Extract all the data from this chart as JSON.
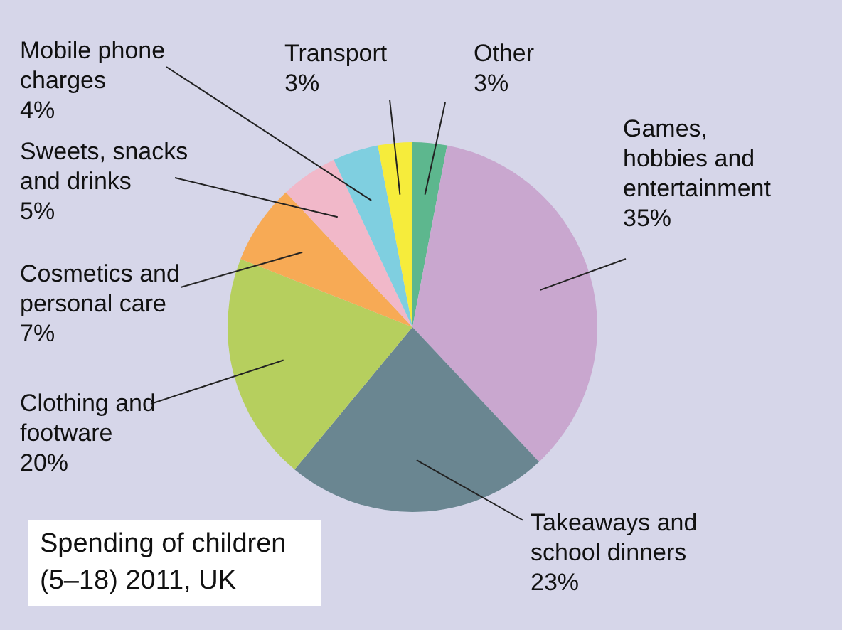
{
  "chart_data": {
    "type": "pie",
    "title": "Spending of children (5–18) 2011, UK",
    "categories": [
      "Other",
      "Games, hobbies and entertainment",
      "Takeaways and school dinners",
      "Clothing and footware",
      "Cosmetics and personal care",
      "Sweets, snacks and drinks",
      "Mobile phone charges",
      "Transport"
    ],
    "values": [
      3,
      35,
      23,
      20,
      7,
      5,
      4,
      3
    ],
    "value_labels": [
      "3%",
      "35%",
      "23%",
      "20%",
      "7%",
      "5%",
      "4%",
      "3%"
    ],
    "colors": [
      "#5db78e",
      "#c9a7cf",
      "#6a8691",
      "#b6cf5e",
      "#f7aa55",
      "#f1b8c9",
      "#7fcfe0",
      "#f6ec3b"
    ],
    "legend": false
  }
}
